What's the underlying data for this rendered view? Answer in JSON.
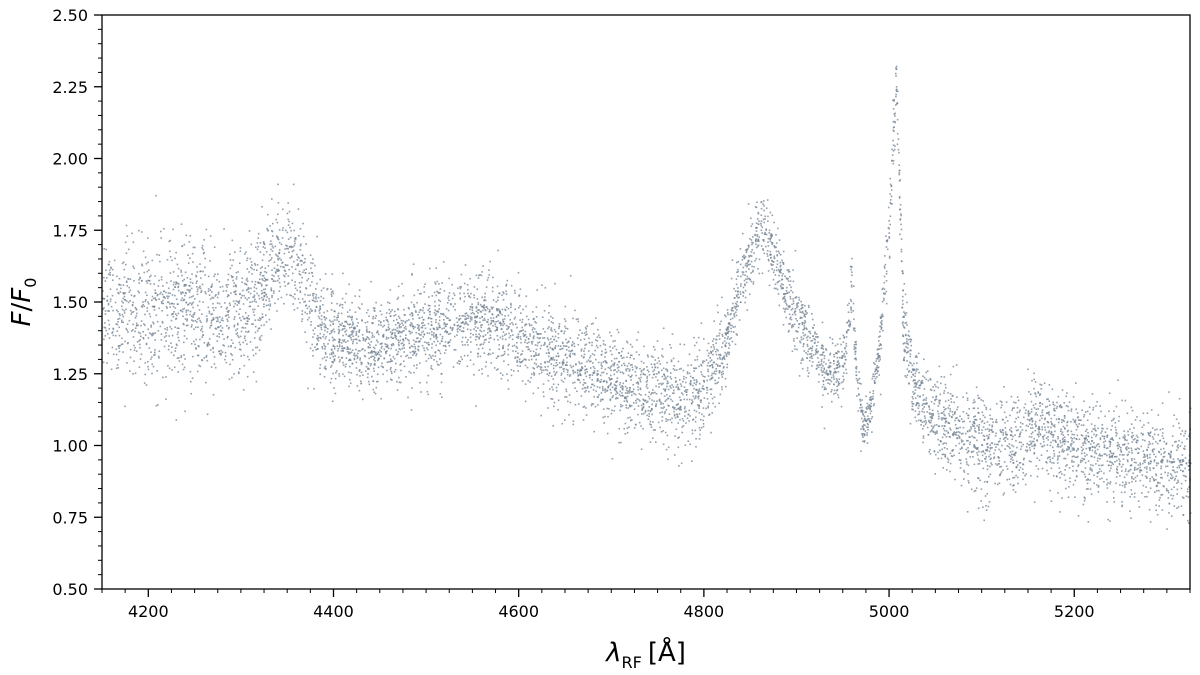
{
  "chart_data": {
    "type": "scatter",
    "title": "",
    "xlabel": {
      "symbol": "λ",
      "subscript": "RF",
      "unit": "[Å]"
    },
    "ylabel": {
      "numerator": "F",
      "denominator": "F",
      "denominator_subscript": "0"
    },
    "xlim": [
      4150,
      5325
    ],
    "ylim": [
      0.5,
      2.5
    ],
    "xticks": [
      4200,
      4400,
      4600,
      4800,
      5000,
      5200
    ],
    "xtick_labels": [
      "4200",
      "4400",
      "4600",
      "4800",
      "5000",
      "5200"
    ],
    "yticks": [
      0.5,
      0.75,
      1.0,
      1.25,
      1.5,
      1.75,
      2.0,
      2.25,
      2.5
    ],
    "ytick_labels": [
      "0.50",
      "0.75",
      "1.00",
      "1.25",
      "1.50",
      "1.75",
      "2.00",
      "2.25",
      "2.50"
    ],
    "grid": false,
    "marker_color": "#708090",
    "series": [
      {
        "x": [
          4150,
          4200,
          4250,
          4300,
          4320,
          4340,
          4350,
          4360,
          4380,
          4400,
          4450,
          4500,
          4550,
          4580,
          4600,
          4650,
          4700,
          4750,
          4780,
          4800,
          4820,
          4840,
          4855,
          4862,
          4870,
          4890,
          4910,
          4930,
          4945,
          4952,
          4959,
          4965,
          4972,
          4980,
          4990,
          5000,
          5005,
          5007,
          5010,
          5015,
          5025,
          5040,
          5060,
          5080,
          5100,
          5130,
          5160,
          5190,
          5220,
          5260,
          5300,
          5325
        ],
        "y": [
          1.48,
          1.46,
          1.47,
          1.46,
          1.55,
          1.66,
          1.68,
          1.63,
          1.45,
          1.37,
          1.35,
          1.4,
          1.45,
          1.44,
          1.38,
          1.3,
          1.24,
          1.18,
          1.16,
          1.2,
          1.33,
          1.58,
          1.73,
          1.76,
          1.7,
          1.52,
          1.38,
          1.27,
          1.25,
          1.32,
          1.56,
          1.22,
          1.05,
          1.15,
          1.38,
          1.8,
          2.15,
          2.28,
          1.98,
          1.4,
          1.22,
          1.13,
          1.07,
          1.03,
          1.0,
          0.99,
          1.06,
          1.02,
          0.99,
          0.96,
          0.94,
          0.93
        ],
        "scatter_sd": [
          0.12,
          0.12,
          0.12,
          0.11,
          0.1,
          0.1,
          0.1,
          0.1,
          0.09,
          0.08,
          0.08,
          0.08,
          0.08,
          0.08,
          0.08,
          0.08,
          0.08,
          0.08,
          0.09,
          0.08,
          0.07,
          0.06,
          0.06,
          0.06,
          0.06,
          0.06,
          0.06,
          0.05,
          0.05,
          0.05,
          0.05,
          0.05,
          0.04,
          0.04,
          0.05,
          0.06,
          0.06,
          0.06,
          0.06,
          0.07,
          0.07,
          0.07,
          0.08,
          0.08,
          0.09,
          0.09,
          0.08,
          0.08,
          0.08,
          0.08,
          0.09,
          0.09
        ]
      }
    ]
  }
}
